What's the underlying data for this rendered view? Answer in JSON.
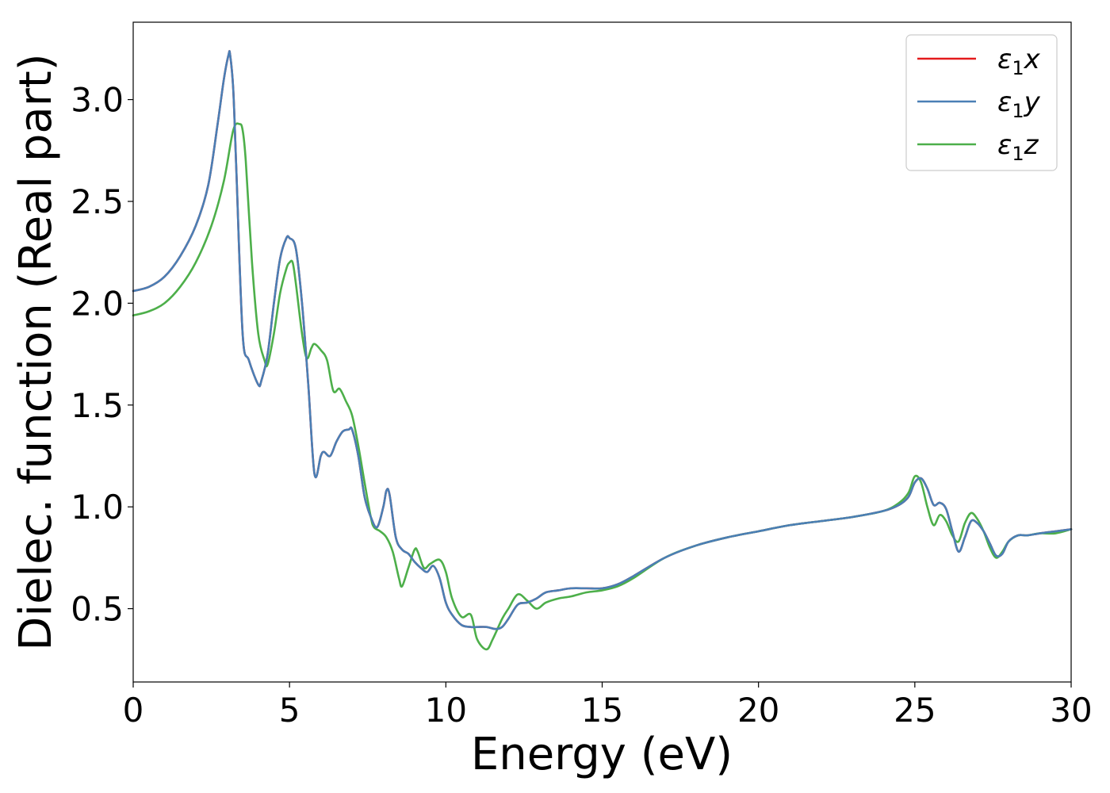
{
  "chart_data": {
    "type": "line",
    "title": "",
    "xlabel": "Energy (eV)",
    "ylabel": "Dielec. function (Real part)",
    "xlim": [
      0,
      30
    ],
    "ylim": [
      0.14,
      3.38
    ],
    "xticks": [
      0,
      5,
      10,
      15,
      20,
      25,
      30
    ],
    "xtick_labels": [
      "0",
      "5",
      "10",
      "15",
      "20",
      "25",
      "30"
    ],
    "yticks": [
      0.5,
      1.0,
      1.5,
      2.0,
      2.5,
      3.0
    ],
    "ytick_labels": [
      "0.5",
      "1.0",
      "1.5",
      "2.0",
      "2.5",
      "3.0"
    ],
    "grid": false,
    "legend_position": "top-right",
    "series": [
      {
        "name": "ε₁x",
        "legend_base": "ε",
        "legend_sub": "1",
        "legend_suffix": "x",
        "color": "#e41a1c",
        "x": [
          0,
          0.5,
          1,
          1.5,
          2,
          2.4,
          2.7,
          2.9,
          3.05,
          3.1,
          3.2,
          3.3,
          3.5,
          3.7,
          4.0,
          4.1,
          4.3,
          4.5,
          4.7,
          4.9,
          5.0,
          5.2,
          5.4,
          5.6,
          5.8,
          6.0,
          6.1,
          6.3,
          6.5,
          6.7,
          6.9,
          7.0,
          7.2,
          7.4,
          7.6,
          7.8,
          8.0,
          8.1,
          8.2,
          8.4,
          8.6,
          8.8,
          9.0,
          9.2,
          9.4,
          9.6,
          9.8,
          10.0,
          10.2,
          10.5,
          10.8,
          11.0,
          11.3,
          11.6,
          11.8,
          12.0,
          12.3,
          12.6,
          12.9,
          13.2,
          13.6,
          14.0,
          14.5,
          15.0,
          15.5,
          16,
          17,
          18,
          19,
          20,
          21,
          22,
          23,
          24,
          24.5,
          24.8,
          25.0,
          25.2,
          25.4,
          25.6,
          25.8,
          26.0,
          26.2,
          26.4,
          26.6,
          26.8,
          27.0,
          27.2,
          27.4,
          27.6,
          27.8,
          28.0,
          28.3,
          28.6,
          29,
          29.5,
          30
        ],
        "y": [
          2.06,
          2.08,
          2.13,
          2.23,
          2.38,
          2.58,
          2.88,
          3.1,
          3.22,
          3.22,
          3.05,
          2.65,
          1.85,
          1.72,
          1.6,
          1.62,
          1.75,
          2.0,
          2.22,
          2.32,
          2.32,
          2.27,
          2.0,
          1.6,
          1.16,
          1.25,
          1.27,
          1.25,
          1.32,
          1.37,
          1.38,
          1.38,
          1.25,
          1.05,
          0.95,
          0.9,
          1.0,
          1.08,
          1.06,
          0.85,
          0.79,
          0.77,
          0.73,
          0.7,
          0.68,
          0.71,
          0.65,
          0.53,
          0.47,
          0.42,
          0.41,
          0.41,
          0.41,
          0.4,
          0.41,
          0.45,
          0.52,
          0.53,
          0.55,
          0.58,
          0.59,
          0.6,
          0.6,
          0.6,
          0.62,
          0.66,
          0.75,
          0.81,
          0.85,
          0.88,
          0.91,
          0.93,
          0.95,
          0.98,
          1.01,
          1.05,
          1.12,
          1.14,
          1.09,
          1.01,
          1.02,
          0.99,
          0.88,
          0.78,
          0.85,
          0.93,
          0.92,
          0.88,
          0.82,
          0.76,
          0.77,
          0.83,
          0.86,
          0.86,
          0.87,
          0.88,
          0.89
        ]
      },
      {
        "name": "ε₁y",
        "legend_base": "ε",
        "legend_sub": "1",
        "legend_suffix": "y",
        "color": "#4a7fb5",
        "x": [
          0,
          0.5,
          1,
          1.5,
          2,
          2.4,
          2.7,
          2.9,
          3.05,
          3.1,
          3.2,
          3.3,
          3.5,
          3.7,
          4.0,
          4.1,
          4.3,
          4.5,
          4.7,
          4.9,
          5.0,
          5.2,
          5.4,
          5.6,
          5.8,
          6.0,
          6.1,
          6.3,
          6.5,
          6.7,
          6.9,
          7.0,
          7.2,
          7.4,
          7.6,
          7.8,
          8.0,
          8.1,
          8.2,
          8.4,
          8.6,
          8.8,
          9.0,
          9.2,
          9.4,
          9.6,
          9.8,
          10.0,
          10.2,
          10.5,
          10.8,
          11.0,
          11.3,
          11.6,
          11.8,
          12.0,
          12.3,
          12.6,
          12.9,
          13.2,
          13.6,
          14.0,
          14.5,
          15.0,
          15.5,
          16,
          17,
          18,
          19,
          20,
          21,
          22,
          23,
          24,
          24.5,
          24.8,
          25.0,
          25.2,
          25.4,
          25.6,
          25.8,
          26.0,
          26.2,
          26.4,
          26.6,
          26.8,
          27.0,
          27.2,
          27.4,
          27.6,
          27.8,
          28.0,
          28.3,
          28.6,
          29,
          29.5,
          30
        ],
        "y": [
          2.06,
          2.08,
          2.13,
          2.23,
          2.38,
          2.58,
          2.88,
          3.1,
          3.22,
          3.22,
          3.05,
          2.65,
          1.85,
          1.72,
          1.6,
          1.62,
          1.75,
          2.0,
          2.22,
          2.32,
          2.32,
          2.27,
          2.0,
          1.6,
          1.16,
          1.25,
          1.27,
          1.25,
          1.32,
          1.37,
          1.38,
          1.38,
          1.25,
          1.05,
          0.95,
          0.9,
          1.0,
          1.08,
          1.06,
          0.85,
          0.79,
          0.77,
          0.73,
          0.7,
          0.68,
          0.71,
          0.65,
          0.53,
          0.47,
          0.42,
          0.41,
          0.41,
          0.41,
          0.4,
          0.41,
          0.45,
          0.52,
          0.53,
          0.55,
          0.58,
          0.59,
          0.6,
          0.6,
          0.6,
          0.62,
          0.66,
          0.75,
          0.81,
          0.85,
          0.88,
          0.91,
          0.93,
          0.95,
          0.98,
          1.01,
          1.05,
          1.12,
          1.14,
          1.09,
          1.01,
          1.02,
          0.99,
          0.88,
          0.78,
          0.85,
          0.93,
          0.92,
          0.88,
          0.82,
          0.76,
          0.77,
          0.83,
          0.86,
          0.86,
          0.87,
          0.88,
          0.89
        ]
      },
      {
        "name": "ε₁z",
        "legend_base": "ε",
        "legend_sub": "1",
        "legend_suffix": "z",
        "color": "#4daf4a",
        "x": [
          0,
          0.5,
          1,
          1.5,
          2,
          2.5,
          2.9,
          3.2,
          3.4,
          3.5,
          3.6,
          3.8,
          4.0,
          4.2,
          4.3,
          4.5,
          4.7,
          4.9,
          5.0,
          5.1,
          5.2,
          5.4,
          5.55,
          5.7,
          5.8,
          6.0,
          6.2,
          6.4,
          6.6,
          6.8,
          7.0,
          7.2,
          7.4,
          7.6,
          7.7,
          7.9,
          8.1,
          8.3,
          8.5,
          8.6,
          8.8,
          9.0,
          9.1,
          9.3,
          9.5,
          9.8,
          10.0,
          10.2,
          10.5,
          10.8,
          11.0,
          11.3,
          11.5,
          11.8,
          12.0,
          12.3,
          12.6,
          12.9,
          13.2,
          13.6,
          14.0,
          14.5,
          15.0,
          15.5,
          16,
          17,
          18,
          19,
          20,
          21,
          22,
          23,
          24,
          24.5,
          24.8,
          25.0,
          25.2,
          25.4,
          25.6,
          25.8,
          26.0,
          26.2,
          26.4,
          26.6,
          26.8,
          27.0,
          27.2,
          27.4,
          27.6,
          27.8,
          28.0,
          28.3,
          28.6,
          29,
          29.5,
          30
        ],
        "y": [
          1.94,
          1.96,
          2.0,
          2.08,
          2.2,
          2.38,
          2.6,
          2.85,
          2.88,
          2.85,
          2.7,
          2.2,
          1.85,
          1.72,
          1.7,
          1.85,
          2.05,
          2.17,
          2.2,
          2.2,
          2.1,
          1.85,
          1.73,
          1.78,
          1.8,
          1.77,
          1.72,
          1.57,
          1.58,
          1.52,
          1.45,
          1.3,
          1.12,
          0.95,
          0.9,
          0.88,
          0.85,
          0.78,
          0.65,
          0.61,
          0.7,
          0.79,
          0.78,
          0.7,
          0.72,
          0.74,
          0.68,
          0.55,
          0.46,
          0.47,
          0.35,
          0.3,
          0.35,
          0.45,
          0.5,
          0.57,
          0.54,
          0.5,
          0.53,
          0.55,
          0.56,
          0.58,
          0.59,
          0.61,
          0.65,
          0.75,
          0.81,
          0.85,
          0.88,
          0.91,
          0.93,
          0.95,
          0.98,
          1.02,
          1.07,
          1.15,
          1.12,
          1.0,
          0.91,
          0.96,
          0.93,
          0.86,
          0.83,
          0.92,
          0.97,
          0.94,
          0.88,
          0.8,
          0.75,
          0.78,
          0.83,
          0.86,
          0.86,
          0.87,
          0.87,
          0.89
        ]
      }
    ]
  }
}
